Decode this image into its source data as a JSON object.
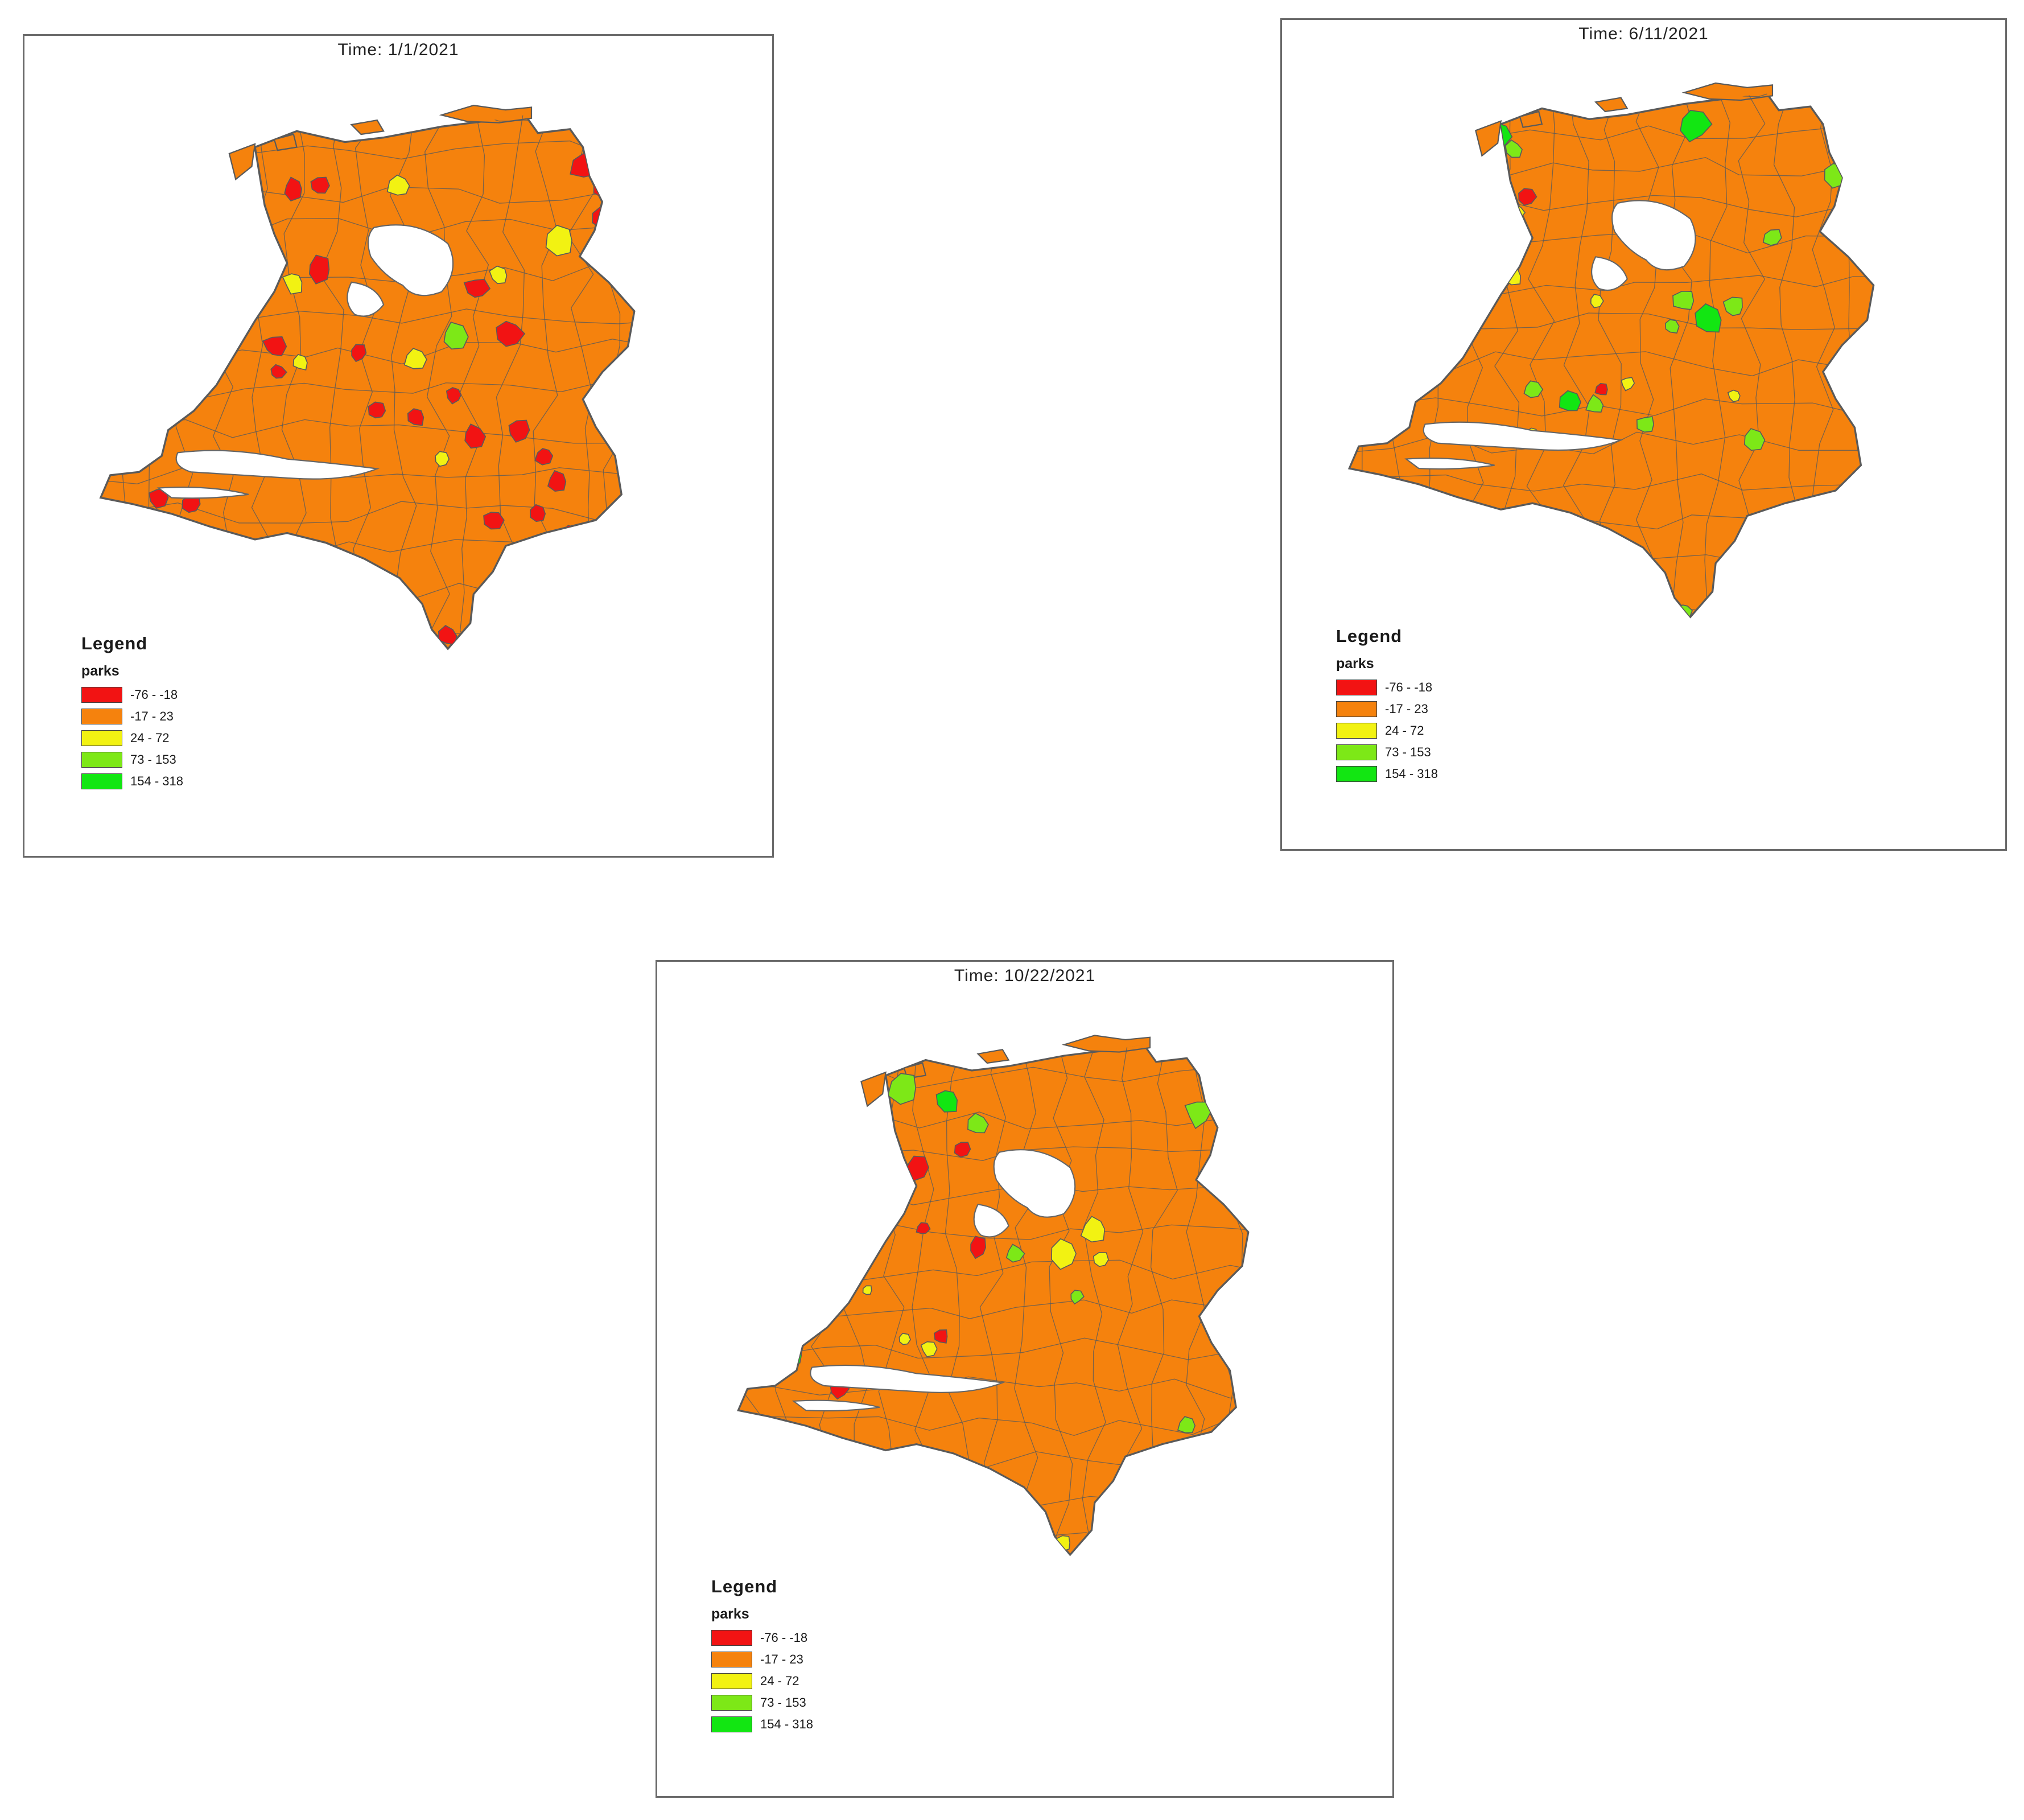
{
  "figure": "Netherlands municipalities choropleth - parks mobility change",
  "colors": {
    "border": "#5a5a5a",
    "water_edge": "#666666"
  },
  "legend": {
    "title": "Legend",
    "field": "parks",
    "classes": [
      {
        "label": "-76 - -18",
        "color": "#f21313"
      },
      {
        "label": "-17 - 23",
        "color": "#f5820d"
      },
      {
        "label": "24 - 72",
        "color": "#f2f212"
      },
      {
        "label": "73 - 153",
        "color": "#7de817"
      },
      {
        "label": "154 - 318",
        "color": "#12e612"
      }
    ]
  },
  "panels": [
    {
      "title": "Time: 1/1/2021",
      "dominant_class": "-17 - 23",
      "highlighted_classes": [
        "-76 - -18",
        "24 - 72",
        "73 - 153"
      ]
    },
    {
      "title": "Time: 6/11/2021",
      "dominant_class": "-17 - 23",
      "highlighted_classes": [
        "73 - 153",
        "154 - 318",
        "24 - 72",
        "-76 - -18"
      ]
    },
    {
      "title": "Time: 10/22/2021",
      "dominant_class": "-17 - 23",
      "highlighted_classes": [
        "154 - 318",
        "73 - 153",
        "24 - 72",
        "-76 - -18"
      ]
    }
  ]
}
